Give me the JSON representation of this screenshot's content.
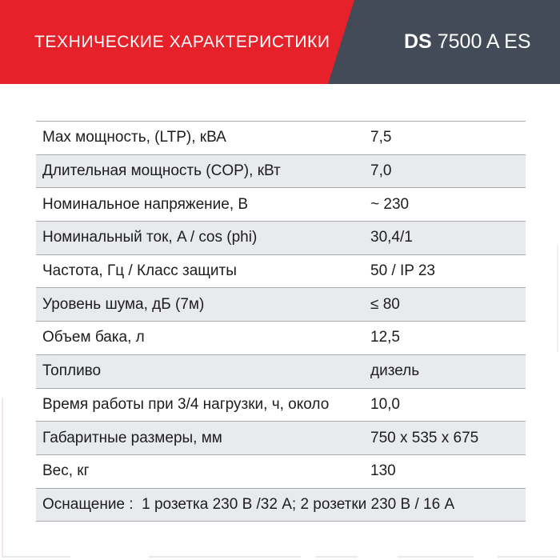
{
  "header": {
    "title": "ТЕХНИЧЕСКИЕ ХАРАКТЕРИСТИКИ",
    "model_bold": "DS",
    "model_regular": "7500 A ES",
    "colors": {
      "banner_red": "#e6212a",
      "banner_slate": "#424b57"
    }
  },
  "table": {
    "colors": {
      "row_alt": "#e8eaec",
      "border": "#a6abb2",
      "text": "#1d1d1f"
    },
    "rows": [
      {
        "label": "Max мощность, (LTP), кВА",
        "value": "7,5"
      },
      {
        "label": "Длительная мощность (COP), кВт",
        "value": "7,0"
      },
      {
        "label": "Номинальное напряжение, В",
        "value": "~ 230"
      },
      {
        "label": "Номинальный ток, A / cos (phi)",
        "value": "30,4/1"
      },
      {
        "label": "Частота, Гц / Класс защиты",
        "value": "50 / IP 23"
      },
      {
        "label": "Уровень шума, дБ (7м)",
        "value": "≤ 80"
      },
      {
        "label": "Объем бака, л",
        "value": "12,5"
      },
      {
        "label": "Топливо",
        "value": "дизель"
      },
      {
        "label": "Время работы при 3/4 нагрузки, ч, около",
        "value": "10,0"
      },
      {
        "label": "Габаритные размеры, мм",
        "value": "750 x 535 x 675"
      },
      {
        "label": "Вес, кг",
        "value": "130"
      }
    ],
    "equipment_row": "Оснащение :  1 розетка 230 В /32 А; 2 розетки 230 В / 16 А"
  }
}
